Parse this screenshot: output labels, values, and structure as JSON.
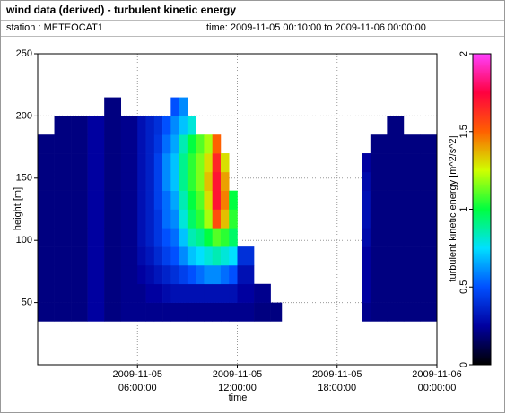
{
  "chart_data": {
    "type": "heatmap",
    "title": "wind data (derived) - turbulent kinetic energy",
    "station": "station : METEOCAT1",
    "time_range": "time: 2009-11-05 00:10:00 to 2009-11-06 00:00:00",
    "xlabel": "time",
    "ylabel": "height [m]",
    "colorbar_label": "turbulent kinetic energy [m^2/s^2]",
    "xlim": [
      "2009-11-05T00:00",
      "2009-11-06T00:00"
    ],
    "xticks": [
      {
        "value": "2009-11-05T06:00",
        "label": [
          "2009-11-05",
          "06:00:00"
        ]
      },
      {
        "value": "2009-11-05T12:00",
        "label": [
          "2009-11-05",
          "12:00:00"
        ]
      },
      {
        "value": "2009-11-05T18:00",
        "label": [
          "2009-11-05",
          "18:00:00"
        ]
      },
      {
        "value": "2009-11-06T00:00",
        "label": [
          "2009-11-06",
          "00:00:00"
        ]
      }
    ],
    "ylim": [
      0,
      250
    ],
    "yticks": [
      50,
      100,
      150,
      200,
      250
    ],
    "zlim": [
      0,
      2
    ],
    "zticks": [
      0,
      0.5,
      1,
      1.5,
      2
    ],
    "colormap": [
      "#000000",
      "#0000a0",
      "#0050ff",
      "#00e0ff",
      "#00ff40",
      "#d0ff00",
      "#ff6000",
      "#ff0040",
      "#ff40ff"
    ],
    "grid": true,
    "x_bins": [
      "2009-11-05T00:00",
      "2009-11-05T01:00",
      "2009-11-05T02:00",
      "2009-11-05T03:00",
      "2009-11-05T04:00",
      "2009-11-05T05:00",
      "2009-11-05T06:00",
      "2009-11-05T06:30",
      "2009-11-05T07:00",
      "2009-11-05T07:30",
      "2009-11-05T08:00",
      "2009-11-05T08:30",
      "2009-11-05T09:00",
      "2009-11-05T09:30",
      "2009-11-05T10:00",
      "2009-11-05T10:30",
      "2009-11-05T11:00",
      "2009-11-05T11:30",
      "2009-11-05T12:00",
      "2009-11-05T13:00",
      "2009-11-05T14:00",
      "2009-11-05T14:40",
      "2009-11-05T19:30",
      "2009-11-05T20:00",
      "2009-11-05T21:00",
      "2009-11-05T22:00",
      "2009-11-05T23:00",
      "2009-11-06T00:00"
    ],
    "y_bins": [
      35,
      50,
      65,
      80,
      95,
      110,
      125,
      140,
      155,
      170,
      185,
      200,
      215
    ],
    "z": [
      [
        0.2,
        0.2,
        0.2,
        0.2,
        0.2,
        0.2,
        0.2,
        0.2,
        0.2,
        0.2,
        null,
        null
      ],
      [
        0.2,
        0.2,
        0.2,
        0.2,
        0.2,
        0.2,
        0.2,
        0.2,
        0.2,
        0.2,
        0.2,
        null
      ],
      [
        0.2,
        0.2,
        0.2,
        0.2,
        0.2,
        0.2,
        0.2,
        0.2,
        0.2,
        0.2,
        0.2,
        null
      ],
      [
        0.25,
        0.25,
        0.25,
        0.25,
        0.25,
        0.25,
        0.25,
        0.25,
        0.25,
        0.25,
        0.25,
        null
      ],
      [
        0.2,
        0.2,
        0.2,
        0.2,
        0.2,
        0.2,
        0.2,
        0.2,
        0.2,
        0.2,
        0.2,
        0.2
      ],
      [
        0.22,
        0.22,
        0.22,
        0.22,
        0.22,
        0.22,
        0.22,
        0.22,
        0.22,
        0.22,
        0.22,
        null
      ],
      [
        0.22,
        0.22,
        0.25,
        0.28,
        0.3,
        0.3,
        0.3,
        0.3,
        0.3,
        0.3,
        0.3,
        null
      ],
      [
        0.22,
        0.25,
        0.28,
        0.32,
        0.35,
        0.35,
        0.35,
        0.35,
        0.35,
        0.35,
        0.35,
        null
      ],
      [
        0.22,
        0.25,
        0.32,
        0.38,
        0.42,
        0.42,
        0.45,
        0.45,
        0.45,
        0.42,
        0.4,
        null
      ],
      [
        0.22,
        0.28,
        0.36,
        0.45,
        0.5,
        0.55,
        0.55,
        0.6,
        0.6,
        0.55,
        0.5,
        null
      ],
      [
        0.22,
        0.3,
        0.4,
        0.5,
        0.55,
        0.6,
        0.65,
        0.7,
        0.7,
        0.65,
        0.6,
        0.5
      ],
      [
        0.22,
        0.3,
        0.45,
        0.6,
        0.7,
        0.8,
        0.85,
        0.9,
        0.9,
        0.85,
        0.7,
        0.6
      ],
      [
        0.22,
        0.3,
        0.5,
        0.7,
        0.85,
        0.95,
        1.0,
        1.05,
        1.05,
        1.0,
        0.8,
        null
      ],
      [
        0.22,
        0.3,
        0.55,
        0.75,
        0.9,
        1.05,
        1.1,
        1.15,
        1.15,
        1.1,
        null,
        null
      ],
      [
        0.22,
        0.3,
        0.6,
        0.8,
        1.0,
        1.2,
        1.3,
        1.35,
        1.3,
        1.2,
        null,
        null
      ],
      [
        0.22,
        0.3,
        0.6,
        0.85,
        1.1,
        1.55,
        1.7,
        1.7,
        1.65,
        1.5,
        null,
        null
      ],
      [
        0.22,
        0.3,
        0.55,
        0.8,
        1.05,
        1.35,
        1.45,
        1.4,
        1.3,
        null,
        null,
        null
      ],
      [
        0.22,
        0.3,
        0.5,
        0.75,
        0.95,
        1.05,
        1.0,
        null,
        null,
        null,
        null,
        null
      ],
      [
        0.22,
        0.25,
        0.3,
        0.4,
        null,
        null,
        null,
        null,
        null,
        null,
        null,
        null
      ],
      [
        0.2,
        0.22,
        null,
        null,
        null,
        null,
        null,
        null,
        null,
        null,
        null,
        null
      ],
      [
        0.2,
        null,
        null,
        null,
        null,
        null,
        null,
        null,
        null,
        null,
        null,
        null
      ],
      [
        null,
        null,
        null,
        null,
        null,
        null,
        null,
        null,
        null,
        null,
        null,
        null
      ],
      [
        0.22,
        0.25,
        0.25,
        0.25,
        0.28,
        0.3,
        0.3,
        0.28,
        0.25,
        null,
        null,
        null
      ],
      [
        0.2,
        0.2,
        0.2,
        0.2,
        0.2,
        0.2,
        0.2,
        0.2,
        0.2,
        0.2,
        null,
        null
      ],
      [
        0.2,
        0.2,
        0.2,
        0.2,
        0.2,
        0.2,
        0.2,
        0.2,
        0.2,
        0.2,
        0.2,
        null
      ],
      [
        0.2,
        0.2,
        0.2,
        0.2,
        0.2,
        0.2,
        0.2,
        0.2,
        0.2,
        0.2,
        null,
        null
      ],
      [
        0.2,
        0.2,
        0.2,
        0.2,
        0.2,
        0.2,
        0.2,
        0.2,
        0.2,
        0.2,
        null,
        null
      ]
    ]
  }
}
